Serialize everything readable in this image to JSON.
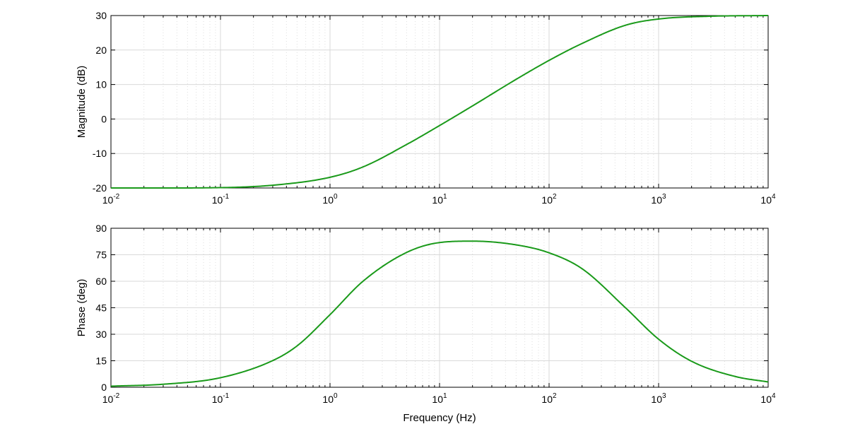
{
  "chart_data": [
    {
      "type": "line",
      "xscale": "log",
      "xlim": [
        0.01,
        10000
      ],
      "ylim": [
        -20,
        30
      ],
      "yticks": [
        -20,
        -10,
        0,
        10,
        20,
        30
      ],
      "xtick_exponents": [
        "-2",
        "-1",
        "0",
        "1",
        "2",
        "3",
        "4"
      ],
      "xtick_base": "10",
      "xlabel": "",
      "ylabel": "Magnitude (dB)",
      "grid": true,
      "color": "#1a9a1a",
      "series": [
        {
          "x": [
            0.01,
            0.03,
            0.1,
            0.3,
            1,
            2,
            5,
            10,
            20,
            50,
            100,
            200,
            500,
            1000,
            3000,
            10000
          ],
          "values": [
            -20,
            -20,
            -19.9,
            -19.2,
            -16.9,
            -13.9,
            -7.4,
            -1.9,
            3.8,
            11.5,
            17.0,
            21.9,
            27.2,
            29.0,
            29.8,
            30
          ]
        }
      ]
    },
    {
      "type": "line",
      "xscale": "log",
      "xlim": [
        0.01,
        10000
      ],
      "ylim": [
        0,
        90
      ],
      "yticks": [
        0,
        15,
        30,
        45,
        60,
        75,
        90
      ],
      "xtick_exponents": [
        "-2",
        "-1",
        "0",
        "1",
        "2",
        "3",
        "4"
      ],
      "xtick_base": "10",
      "xlabel": "Frequency (Hz)",
      "ylabel": "Phase (deg)",
      "grid": true,
      "color": "#1a9a1a",
      "series": [
        {
          "x": [
            0.01,
            0.03,
            0.1,
            0.3,
            0.5,
            1,
            2,
            5,
            10,
            20,
            50,
            100,
            200,
            500,
            1000,
            2000,
            5000,
            10000
          ],
          "values": [
            0.6,
            1.7,
            5.4,
            15.1,
            23.4,
            41.1,
            60.0,
            76.3,
            81.9,
            82.7,
            80.6,
            76.1,
            67.1,
            44.9,
            27.2,
            14.7,
            6.1,
            3.0
          ]
        }
      ]
    }
  ]
}
